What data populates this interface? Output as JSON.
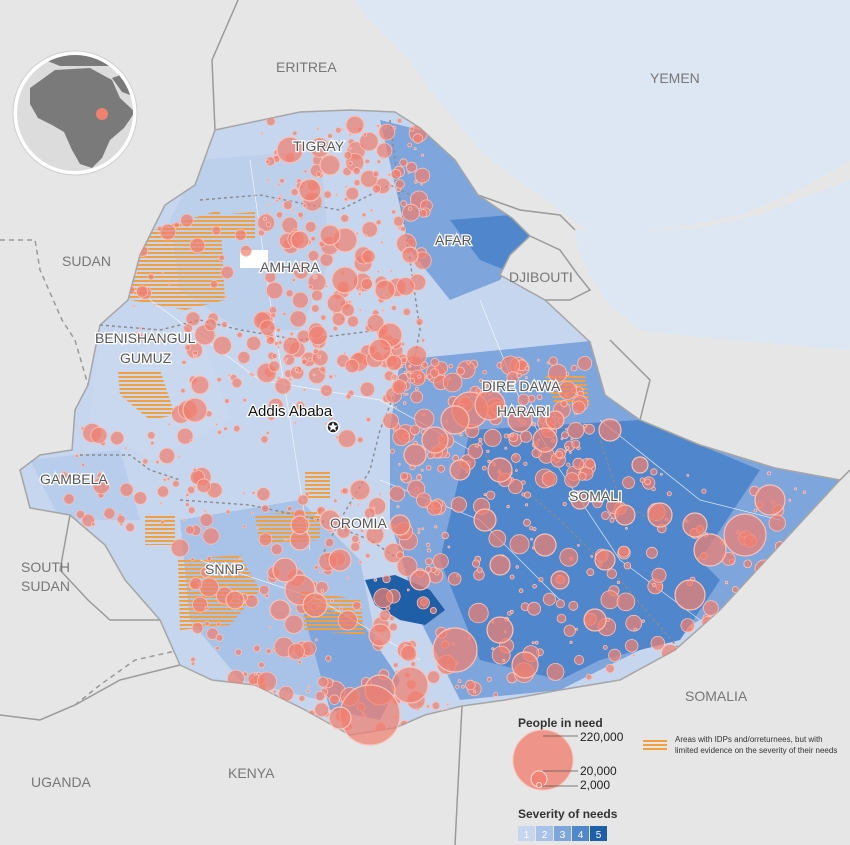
{
  "country_labels": {
    "eritrea": "ERITREA",
    "yemen": "YEMEN",
    "sudan": "SUDAN",
    "djibouti": "DJIBOUTI",
    "south_sudan_1": "SOUTH",
    "south_sudan_2": "SUDAN",
    "somalia": "SOMALIA",
    "uganda": "UGANDA",
    "kenya": "KENYA"
  },
  "region_labels": {
    "tigray": "TIGRAY",
    "afar": "AFAR",
    "amhara": "AMHARA",
    "benishangul_1": "BENISHANGUL",
    "benishangul_2": "GUMUZ",
    "dire_dawa": "DIRE DAWA",
    "harari": "HARARI",
    "gambela": "GAMBELA",
    "somali": "SOMALI",
    "oromia": "OROMIA",
    "snnp": "SNNP"
  },
  "capital": {
    "name": "Addis Ababa"
  },
  "legend": {
    "people_title": "People in need",
    "people_values": [
      "220,000",
      "20,000",
      "2,000"
    ],
    "idp_note_1": "Areas with IDPs and/orreturnees, but with",
    "idp_note_2": "limited evidence on the severity of their needs",
    "severity_title": "Severity of needs",
    "severity_levels": [
      "1",
      "2",
      "3",
      "4",
      "5"
    ]
  },
  "colors": {
    "sea": "#dde6f3",
    "land_other": "#e6e6e6",
    "severity": [
      "#c6d6ee",
      "#a9c3e8",
      "#7ea6dd",
      "#4f86cc",
      "#1f5fa8"
    ],
    "bubble_fill": "#f08070",
    "bubble_stroke": "#f6b8ac",
    "idp_hatch": "#f0a040"
  }
}
